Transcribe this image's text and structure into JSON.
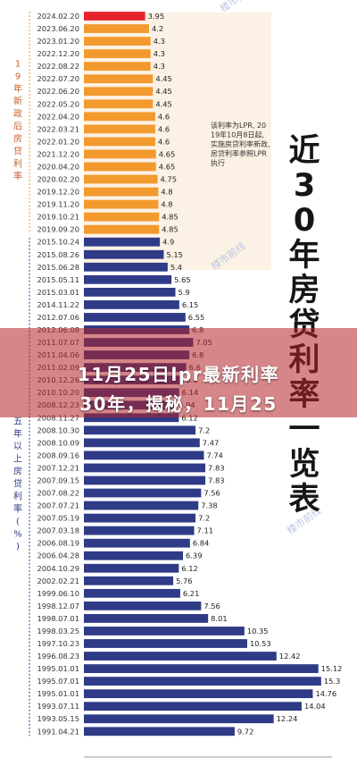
{
  "chart_data": {
    "type": "bar",
    "orientation": "horizontal",
    "title": "近30年房贷利率一览表",
    "groups": [
      {
        "label": "19年新政后房贷利率",
        "color": "#f29a2e"
      },
      {
        "label": "五年以上房贷利率(%)",
        "color": "#2f3b86"
      }
    ],
    "highlight_color": "#e8232b",
    "note": "该利率为LPR, 2019年10月8日起,实施房贷利率新政,房贷利率参照LPR执行",
    "watermark": "楼市前线",
    "xlim": [
      0,
      16
    ],
    "data": [
      {
        "date": "2024.02.20",
        "value": 3.95,
        "group": 0,
        "highlight": true
      },
      {
        "date": "2023.06.20",
        "value": 4.2,
        "group": 0
      },
      {
        "date": "2023.01.20",
        "value": 4.3,
        "group": 0
      },
      {
        "date": "2022.12.20",
        "value": 4.3,
        "group": 0
      },
      {
        "date": "2022.08.22",
        "value": 4.3,
        "group": 0
      },
      {
        "date": "2022.07.20",
        "value": 4.45,
        "group": 0
      },
      {
        "date": "2022.06.20",
        "value": 4.45,
        "group": 0
      },
      {
        "date": "2022.05.20",
        "value": 4.45,
        "group": 0
      },
      {
        "date": "2022.04.20",
        "value": 4.6,
        "group": 0
      },
      {
        "date": "2022.03.21",
        "value": 4.6,
        "group": 0
      },
      {
        "date": "2022.01.20",
        "value": 4.6,
        "group": 0
      },
      {
        "date": "2021.12.20",
        "value": 4.65,
        "group": 0
      },
      {
        "date": "2020.04.20",
        "value": 4.65,
        "group": 0
      },
      {
        "date": "2020.02.20",
        "value": 4.75,
        "group": 0
      },
      {
        "date": "2019.12.20",
        "value": 4.8,
        "group": 0
      },
      {
        "date": "2019.11.20",
        "value": 4.8,
        "group": 0
      },
      {
        "date": "2019.10.21",
        "value": 4.85,
        "group": 0
      },
      {
        "date": "2019.09.20",
        "value": 4.85,
        "group": 0
      },
      {
        "date": "2015.10.24",
        "value": 4.9,
        "group": 1
      },
      {
        "date": "2015.08.26",
        "value": 5.15,
        "group": 1
      },
      {
        "date": "2015.06.28",
        "value": 5.4,
        "group": 1
      },
      {
        "date": "2015.05.11",
        "value": 5.65,
        "group": 1
      },
      {
        "date": "2015.03.01",
        "value": 5.9,
        "group": 1
      },
      {
        "date": "2014.11.22",
        "value": 6.15,
        "group": 1
      },
      {
        "date": "2012.07.06",
        "value": 6.55,
        "group": 1
      },
      {
        "date": "2012.06.08",
        "value": 6.8,
        "group": 1
      },
      {
        "date": "2011.07.07",
        "value": 7.05,
        "group": 1
      },
      {
        "date": "2011.04.06",
        "value": 6.8,
        "group": 1
      },
      {
        "date": "2011.02.09",
        "value": 6.6,
        "group": 1
      },
      {
        "date": "2010.12.26",
        "value": 6.4,
        "group": 1
      },
      {
        "date": "2010.10.20",
        "value": 6.14,
        "group": 1
      },
      {
        "date": "2008.12.23",
        "value": 5.94,
        "group": 1
      },
      {
        "date": "2008.11.27",
        "value": 6.12,
        "group": 1
      },
      {
        "date": "2008.10.30",
        "value": 7.2,
        "group": 1
      },
      {
        "date": "2008.10.09",
        "value": 7.47,
        "group": 1
      },
      {
        "date": "2008.09.16",
        "value": 7.74,
        "group": 1
      },
      {
        "date": "2007.12.21",
        "value": 7.83,
        "group": 1
      },
      {
        "date": "2007.09.15",
        "value": 7.83,
        "group": 1
      },
      {
        "date": "2007.08.22",
        "value": 7.56,
        "group": 1
      },
      {
        "date": "2007.07.21",
        "value": 7.38,
        "group": 1
      },
      {
        "date": "2007.05.19",
        "value": 7.2,
        "group": 1
      },
      {
        "date": "2007.03.18",
        "value": 7.11,
        "group": 1
      },
      {
        "date": "2006.08.19",
        "value": 6.84,
        "group": 1
      },
      {
        "date": "2006.04.28",
        "value": 6.39,
        "group": 1
      },
      {
        "date": "2004.10.29",
        "value": 6.12,
        "group": 1
      },
      {
        "date": "2002.02.21",
        "value": 5.76,
        "group": 1
      },
      {
        "date": "1999.06.10",
        "value": 6.21,
        "group": 1
      },
      {
        "date": "1998.12.07",
        "value": 7.56,
        "group": 1
      },
      {
        "date": "1998.07.01",
        "value": 8.01,
        "group": 1
      },
      {
        "date": "1998.03.25",
        "value": 10.35,
        "group": 1
      },
      {
        "date": "1997.10.23",
        "value": 10.53,
        "group": 1
      },
      {
        "date": "1996.08.23",
        "value": 12.42,
        "group": 1
      },
      {
        "date": "1995.01.01",
        "value": 15.12,
        "group": 1
      },
      {
        "date": "1995.07.01",
        "value": 15.3,
        "group": 1
      },
      {
        "date": "1995.01.01",
        "value": 14.76,
        "group": 1
      },
      {
        "date": "1993.07.11",
        "value": 14.04,
        "group": 1
      },
      {
        "date": "1993.05.15",
        "value": 12.24,
        "group": 1
      },
      {
        "date": "1991.04.21",
        "value": 9.72,
        "group": 1
      }
    ]
  },
  "banner": {
    "line1": "11月25日lpr最新利率",
    "line2": "30年，揭秘，11月25"
  }
}
